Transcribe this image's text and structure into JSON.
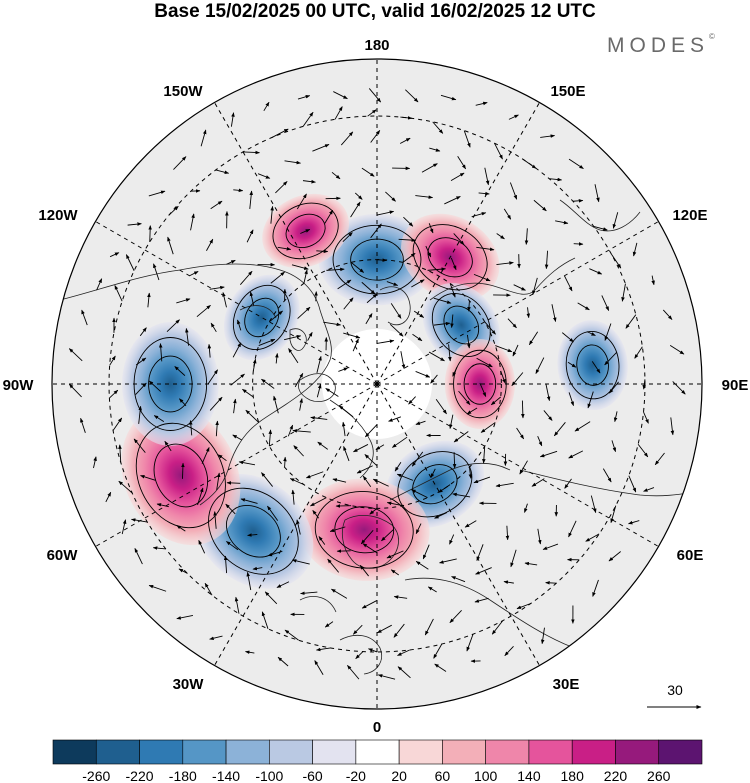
{
  "title": "Base 15/02/2025 00 UTC, valid 16/02/2025 12 UTC",
  "brand": "MODES",
  "brand_mark": "©",
  "longitude_labels": [
    {
      "id": "lon-180",
      "text": "180"
    },
    {
      "id": "lon-150e",
      "text": "150E"
    },
    {
      "id": "lon-120e",
      "text": "120E"
    },
    {
      "id": "lon-90e",
      "text": "90E"
    },
    {
      "id": "lon-60e",
      "text": "60E"
    },
    {
      "id": "lon-30e",
      "text": "30E"
    },
    {
      "id": "lon-0",
      "text": "0"
    },
    {
      "id": "lon-30w",
      "text": "30W"
    },
    {
      "id": "lon-60w",
      "text": "60W"
    },
    {
      "id": "lon-90w",
      "text": "90W"
    },
    {
      "id": "lon-120w",
      "text": "120W"
    },
    {
      "id": "lon-150w",
      "text": "150W"
    }
  ],
  "reference_vector": "30",
  "colorbar": {
    "labels": [
      "-260",
      "-220",
      "-180",
      "-140",
      "-100",
      "-60",
      "-20",
      "20",
      "60",
      "100",
      "140",
      "180",
      "220",
      "260"
    ],
    "colors": [
      "#0d3a5c",
      "#1f5f8f",
      "#2f7ab3",
      "#5596c6",
      "#8cb2d8",
      "#bac9e3",
      "#e3e3f0",
      "#ffffff",
      "#f8d7d7",
      "#f3afb8",
      "#ef86aa",
      "#e5549c",
      "#c91f86",
      "#961a7c",
      "#5c1470"
    ]
  },
  "anomaly_centers": [
    {
      "sign": "negative",
      "value": -180,
      "lon": 180,
      "lat": 60
    },
    {
      "sign": "positive",
      "value": 140,
      "lon": 150,
      "lat": 55
    },
    {
      "sign": "negative",
      "value": -100,
      "lon": 125,
      "lat": 65
    },
    {
      "sign": "negative",
      "value": -100,
      "lon": 95,
      "lat": 40
    },
    {
      "sign": "positive",
      "value": 100,
      "lon": 90,
      "lat": 65
    },
    {
      "sign": "negative",
      "value": -140,
      "lon": 30,
      "lat": 62
    },
    {
      "sign": "positive",
      "value": 220,
      "lon": 355,
      "lat": 55
    },
    {
      "sign": "negative",
      "value": -220,
      "lon": 320,
      "lat": 45
    },
    {
      "sign": "positive",
      "value": 260,
      "lon": 295,
      "lat": 40
    },
    {
      "sign": "negative",
      "value": -200,
      "lon": 270,
      "lat": 42
    },
    {
      "sign": "negative",
      "value": -100,
      "lon": 240,
      "lat": 58
    },
    {
      "sign": "positive",
      "value": 100,
      "lon": 205,
      "lat": 50
    }
  ]
}
